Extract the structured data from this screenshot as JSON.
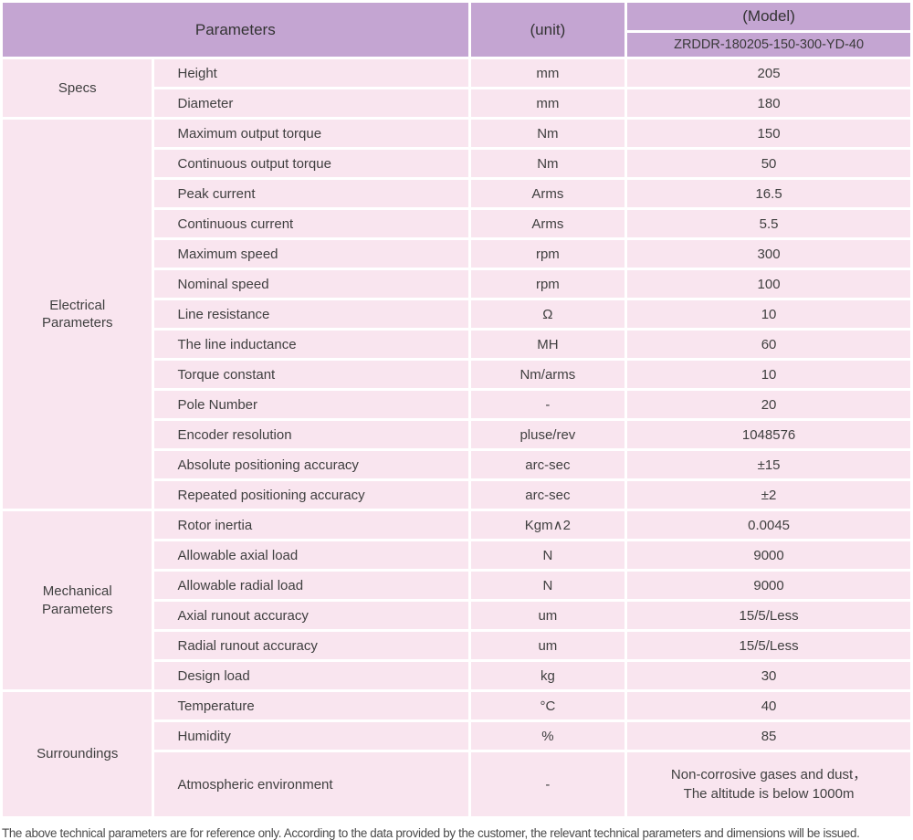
{
  "table": {
    "header": {
      "parameters_label": "Parameters",
      "unit_label": "(unit)",
      "model_label": "(Model)",
      "model_code": "ZRDDR-180205-150-300-YD-40"
    },
    "sections": [
      {
        "label": "Specs",
        "rows": [
          {
            "name": "Height",
            "unit": "mm",
            "value": "205"
          },
          {
            "name": "Diameter",
            "unit": "mm",
            "value": "180"
          }
        ]
      },
      {
        "label": "Electrical Parameters",
        "rows": [
          {
            "name": "Maximum output torque",
            "unit": "Nm",
            "value": "150"
          },
          {
            "name": "Continuous output torque",
            "unit": "Nm",
            "value": "50"
          },
          {
            "name": "Peak current",
            "unit": "Arms",
            "value": "16.5"
          },
          {
            "name": "Continuous current",
            "unit": "Arms",
            "value": "5.5"
          },
          {
            "name": "Maximum speed",
            "unit": "rpm",
            "value": "300"
          },
          {
            "name": "Nominal speed",
            "unit": "rpm",
            "value": "100"
          },
          {
            "name": "Line resistance",
            "unit": "Ω",
            "value": "10"
          },
          {
            "name": "The line inductance",
            "unit": "MH",
            "value": "60"
          },
          {
            "name": "Torque constant",
            "unit": "Nm/arms",
            "value": "10"
          },
          {
            "name": "Pole Number",
            "unit": "-",
            "value": "20"
          },
          {
            "name": "Encoder resolution",
            "unit": "pluse/rev",
            "value": "1048576"
          },
          {
            "name": "Absolute positioning accuracy",
            "unit": "arc-sec",
            "value": "±15"
          },
          {
            "name": "Repeated positioning accuracy",
            "unit": "arc-sec",
            "value": "±2"
          }
        ]
      },
      {
        "label": "Mechanical Parameters",
        "rows": [
          {
            "name": "Rotor inertia",
            "unit": "Kgm∧2",
            "value": "0.0045"
          },
          {
            "name": "Allowable axial load",
            "unit": "N",
            "value": "9000"
          },
          {
            "name": "Allowable radial load",
            "unit": "N",
            "value": "9000"
          },
          {
            "name": "Axial runout accuracy",
            "unit": "um",
            "value": "15/5/Less"
          },
          {
            "name": "Radial runout accuracy",
            "unit": "um",
            "value": "15/5/Less"
          },
          {
            "name": "Design load",
            "unit": "kg",
            "value": "30"
          }
        ]
      },
      {
        "label": "Surroundings",
        "rows": [
          {
            "name": "Temperature",
            "unit": "°C",
            "value": "40"
          },
          {
            "name": "Humidity",
            "unit": "%",
            "value": "85"
          },
          {
            "name": "Atmospheric environment",
            "unit": "-",
            "value": "Non-corrosive gases and dust，\nThe altitude is below 1000m",
            "tall": true
          }
        ]
      }
    ]
  },
  "footer": {
    "note": "The above technical parameters are for reference only. According to the data provided by the customer, the relevant technical parameters and dimensions will be issued."
  },
  "colors": {
    "header_bg": "#c4a5d2",
    "row_bg": "#f9e5ef",
    "gridline": "#ffffff",
    "text": "#404040"
  }
}
